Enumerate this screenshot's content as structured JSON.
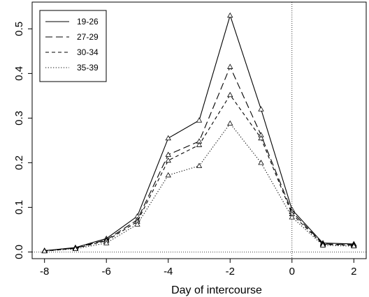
{
  "chart_data": {
    "type": "line",
    "title": "",
    "xlabel": "Day of intercourse",
    "ylabel": "",
    "x": [
      -8,
      -7,
      -6,
      -5,
      -4,
      -3,
      -2,
      -1,
      0,
      1,
      2
    ],
    "xlim": [
      -8.4,
      2.4
    ],
    "ylim": [
      -0.015,
      0.56
    ],
    "xticks": [
      -8,
      -6,
      -4,
      -2,
      0,
      2
    ],
    "yticks": [
      0.0,
      0.1,
      0.2,
      0.3,
      0.4,
      0.5
    ],
    "xtick_labels": [
      "-8",
      "-6",
      "-4",
      "-2",
      "0",
      "2"
    ],
    "ytick_labels": [
      "0.0",
      "0.1",
      "0.2",
      "0.3",
      "0.4",
      "0.5"
    ],
    "grid": false,
    "legend_position": "top-left",
    "marker": "open-triangle",
    "reference_lines": {
      "vertical_x": 0,
      "horizontal_y": 0,
      "style": "dotted"
    },
    "series": [
      {
        "name": "19-26",
        "dash": "solid",
        "values": [
          0.003,
          0.01,
          0.03,
          0.08,
          0.255,
          0.295,
          0.53,
          0.32,
          0.095,
          0.02,
          0.018
        ]
      },
      {
        "name": "27-29",
        "dash": "long-dash",
        "values": [
          0.003,
          0.009,
          0.027,
          0.072,
          0.218,
          0.248,
          0.415,
          0.262,
          0.09,
          0.018,
          0.016
        ]
      },
      {
        "name": "30-34",
        "dash": "short-dash",
        "values": [
          0.002,
          0.008,
          0.025,
          0.068,
          0.205,
          0.24,
          0.352,
          0.255,
          0.085,
          0.017,
          0.015
        ]
      },
      {
        "name": "35-39",
        "dash": "dotted",
        "values": [
          0.002,
          0.007,
          0.02,
          0.062,
          0.172,
          0.193,
          0.288,
          0.2,
          0.078,
          0.015,
          0.013
        ]
      }
    ]
  }
}
